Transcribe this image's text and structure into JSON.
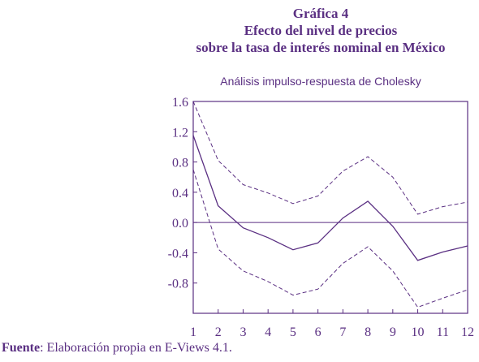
{
  "title_lines": [
    "Gráfica 4",
    "Efecto del nivel de precios",
    "sobre la tasa de interés nominal en México"
  ],
  "subtitle": "Análisis impulso-respuesta de Cholesky",
  "source": {
    "label": "Fuente",
    "text": ": Elaboración propia en E-Views 4.1."
  },
  "colors": {
    "ink": "#5a2f82"
  },
  "chart_data": {
    "type": "line",
    "title": "Efecto del nivel de precios sobre la tasa de interés nominal en México",
    "subtitle": "Análisis impulso-respuesta de Cholesky",
    "x": [
      1,
      2,
      3,
      4,
      5,
      6,
      7,
      8,
      9,
      10,
      11,
      12
    ],
    "ylim": [
      -1.2,
      1.6
    ],
    "yticks": [
      "1.6",
      "1.2",
      "0.8",
      "0.4",
      "0.0",
      "-0.4",
      "-0.8"
    ],
    "ytick_values": [
      1.6,
      1.2,
      0.8,
      0.4,
      0.0,
      -0.4,
      -0.8
    ],
    "zero_line": true,
    "grid": false,
    "series": [
      {
        "style": "solid",
        "values": [
          1.15,
          0.22,
          -0.07,
          -0.2,
          -0.36,
          -0.27,
          0.06,
          0.28,
          -0.05,
          -0.5,
          -0.39,
          -0.31
        ]
      },
      {
        "style": "dashed",
        "values": [
          1.6,
          0.82,
          0.5,
          0.39,
          0.25,
          0.35,
          0.68,
          0.87,
          0.6,
          0.11,
          0.21,
          0.27
        ]
      },
      {
        "style": "dashed",
        "values": [
          0.7,
          -0.35,
          -0.64,
          -0.78,
          -0.96,
          -0.88,
          -0.54,
          -0.32,
          -0.64,
          -1.12,
          -1.0,
          -0.89
        ]
      }
    ]
  }
}
